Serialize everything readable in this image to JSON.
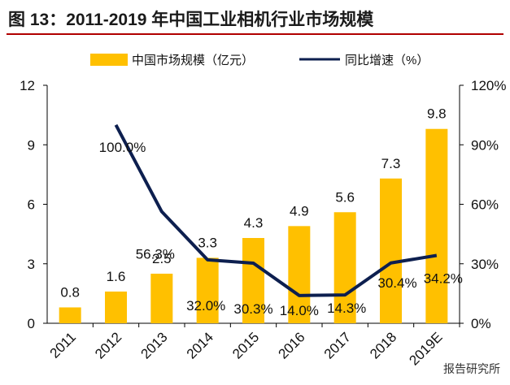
{
  "title": "图 13：2011-2019 年中国工业相机行业市场规模",
  "watermark": "报告研究所",
  "chart_data": {
    "type": "bar",
    "categories": [
      "2011",
      "2012",
      "2013",
      "2014",
      "2015",
      "2016",
      "2017",
      "2018",
      "2019E"
    ],
    "series": [
      {
        "name": "中国市场规模（亿元）",
        "type": "bar",
        "axis": "left",
        "color": "#FFC000",
        "values": [
          0.8,
          1.6,
          2.5,
          3.3,
          4.3,
          4.9,
          5.6,
          7.3,
          9.8
        ],
        "labels": [
          "0.8",
          "1.6",
          "2.5",
          "3.3",
          "4.3",
          "4.9",
          "5.6",
          "7.3",
          "9.8"
        ]
      },
      {
        "name": "同比增速（%）",
        "type": "line",
        "axis": "right",
        "color": "#0D1F4F",
        "values": [
          null,
          100.0,
          56.3,
          32.0,
          30.3,
          14.0,
          14.3,
          30.4,
          34.2
        ],
        "labels": [
          "",
          "100.0%",
          "56.3%",
          "32.0%",
          "30.3%",
          "14.0%",
          "14.3%",
          "30.4%",
          "34.2%"
        ]
      }
    ],
    "y_left": {
      "min": 0,
      "max": 12,
      "ticks": [
        "0",
        "3",
        "6",
        "9",
        "12"
      ]
    },
    "y_right": {
      "min": 0,
      "max": 120,
      "ticks": [
        "0%",
        "30%",
        "60%",
        "90%",
        "120%"
      ]
    },
    "grid": false,
    "legend": "top"
  }
}
